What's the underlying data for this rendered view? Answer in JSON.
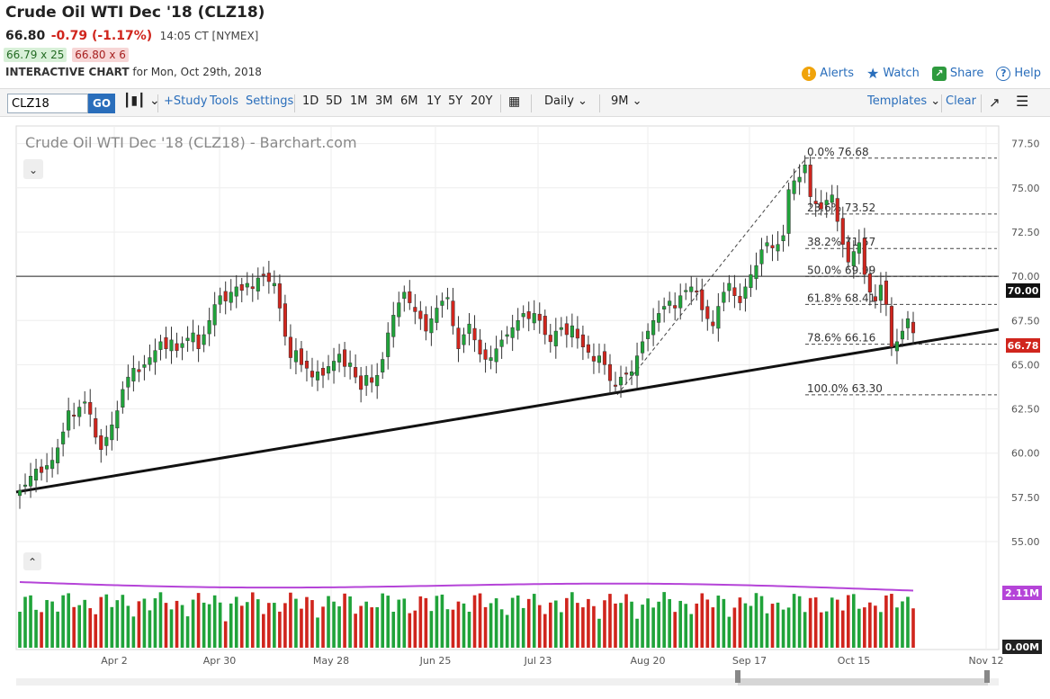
{
  "header": {
    "title": "Crude Oil WTI Dec '18 (CLZ18)",
    "last": "66.80",
    "change": "-0.79 (-1.17%)",
    "time": "14:05 CT [NYMEX]",
    "bid": "66.79 x 25",
    "ask": "66.80 x 6",
    "chart_label": "INTERACTIVE CHART",
    "chart_date": "for Mon, Oct 29th, 2018"
  },
  "actions": {
    "alerts": "Alerts",
    "watch": "Watch",
    "share": "Share",
    "help": "Help"
  },
  "toolbar": {
    "symbol": "CLZ18",
    "go": "GO",
    "study": "+Study",
    "tools": "Tools",
    "settings": "Settings",
    "periods": [
      "1D",
      "5D",
      "1M",
      "3M",
      "6M",
      "1Y",
      "5Y",
      "20Y"
    ],
    "interval": "Daily",
    "range": "9M",
    "templates": "Templates",
    "clear": "Clear"
  },
  "colors": {
    "up": "#20a33a",
    "down": "#d0251d",
    "volume_ma": "#b544d8",
    "link": "#2a6ebb"
  },
  "chart_data": {
    "type": "candlestick",
    "title": "Crude Oil WTI Dec '18 (CLZ18) - Barchart.com",
    "y_ticks": [
      "77.50",
      "75.00",
      "72.50",
      "70.00",
      "67.50",
      "65.00",
      "62.50",
      "60.00",
      "57.50",
      "55.00"
    ],
    "ylim": [
      55,
      78.5
    ],
    "x_ticks": [
      "Apr 2",
      "Apr 30",
      "May 28",
      "Jun 25",
      "Jul 23",
      "Aug 20",
      "Sep 17",
      "Oct 15",
      "Nov 12"
    ],
    "last_price_label": "66.78",
    "horizontal_line_label": "70.00",
    "horizontal_line_value": 70.0,
    "trendline": {
      "start": 57.8,
      "end": 67.0
    },
    "fibonacci": [
      {
        "label": "0.0% 76.68",
        "value": 76.68
      },
      {
        "label": "23.6% 73.52",
        "value": 73.52
      },
      {
        "label": "38.2% 71.57",
        "value": 71.57
      },
      {
        "label": "50.0% 69.99",
        "value": 69.99
      },
      {
        "label": "61.8% 68.41",
        "value": 68.41
      },
      {
        "label": "78.6% 66.16",
        "value": 66.16
      },
      {
        "label": "100.0% 63.30",
        "value": 63.3
      }
    ],
    "closes": [
      57.9,
      58.2,
      58.7,
      59.1,
      58.9,
      59.3,
      59.6,
      60.3,
      61.2,
      62.4,
      62.1,
      62.6,
      62.9,
      62.2,
      60.9,
      60.2,
      60.9,
      61.6,
      62.4,
      63.6,
      64.3,
      64.8,
      64.6,
      65.0,
      65.4,
      65.8,
      66.3,
      65.9,
      66.4,
      65.8,
      66.2,
      66.5,
      66.8,
      65.9,
      66.7,
      67.5,
      68.4,
      68.9,
      68.6,
      69.1,
      69.4,
      69.2,
      69.6,
      69.3,
      69.9,
      70.1,
      69.7,
      69.6,
      68.2,
      66.6,
      65.4,
      65.8,
      65.0,
      64.8,
      64.3,
      64.6,
      64.4,
      64.9,
      65.2,
      65.6,
      64.9,
      65.1,
      64.3,
      63.6,
      64.4,
      64.0,
      64.4,
      65.3,
      66.8,
      67.8,
      68.5,
      69.1,
      68.5,
      68.0,
      67.6,
      66.9,
      67.6,
      68.2,
      68.6,
      68.8,
      67.2,
      65.9,
      66.7,
      67.3,
      66.4,
      65.6,
      65.3,
      65.4,
      65.9,
      66.4,
      66.7,
      67.1,
      67.5,
      67.9,
      67.6,
      67.9,
      67.5,
      66.7,
      66.3,
      66.9,
      67.1,
      66.7,
      67.2,
      66.5,
      66.0,
      65.7,
      65.2,
      65.5,
      65.0,
      64.1,
      63.8,
      64.3,
      64.5,
      64.6,
      65.5,
      66.3,
      66.9,
      67.5,
      67.9,
      68.3,
      68.6,
      68.2,
      68.9,
      69.2,
      69.4,
      69.1,
      68.1,
      67.6,
      67.2,
      68.3,
      69.1,
      69.6,
      68.9,
      68.5,
      69.4,
      70.1,
      70.6,
      71.5,
      71.9,
      71.6,
      71.8,
      72.3,
      74.9,
      75.4,
      75.6,
      76.3,
      74.5,
      74.1,
      73.8,
      74.3,
      74.6,
      73.1,
      71.8,
      70.8,
      71.4,
      71.9,
      70.1,
      69.1,
      68.6,
      69.5,
      68.4,
      66.0,
      66.3,
      66.9,
      67.6,
      66.8
    ],
    "volume_labels": [
      "2.11M",
      "0.00M"
    ]
  }
}
